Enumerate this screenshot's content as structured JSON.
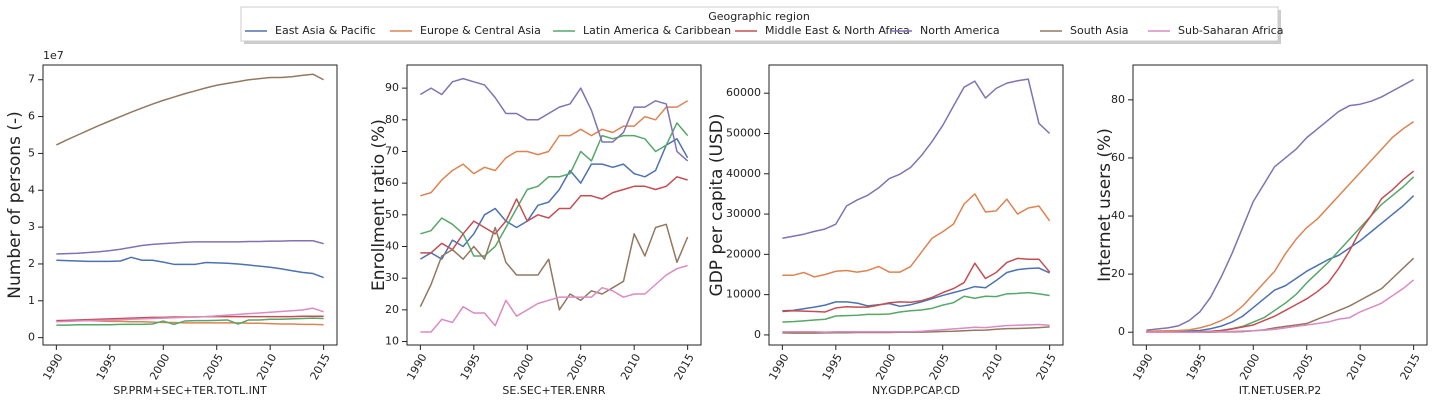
{
  "legend_title": "Geographic region",
  "chart_data": [
    {
      "type": "line",
      "ylabel": "Number of persons (-)",
      "xlabel": "SP.PRM+SEC+TER.TOTL.INT",
      "y_offset_label": "1e7",
      "x": [
        1990,
        1991,
        1992,
        1993,
        1994,
        1995,
        1996,
        1997,
        1998,
        1999,
        2000,
        2001,
        2002,
        2003,
        2004,
        2005,
        2006,
        2007,
        2008,
        2009,
        2010,
        2011,
        2012,
        2013,
        2014,
        2015
      ],
      "xlim": [
        1988.75,
        2016.25
      ],
      "xticks": [
        1990,
        1995,
        2000,
        2005,
        2010,
        2015
      ],
      "ylim": [
        -0.2,
        7.4
      ],
      "yticks": [
        0,
        1,
        2,
        3,
        4,
        5,
        6,
        7
      ],
      "series": [
        {
          "name": "East Asia & Pacific",
          "color": "#4c72b0",
          "values": [
            2.1,
            2.09,
            2.08,
            2.07,
            2.07,
            2.07,
            2.08,
            2.18,
            2.1,
            2.1,
            2.05,
            1.99,
            1.99,
            1.99,
            2.04,
            2.03,
            2.02,
            2.0,
            1.97,
            1.94,
            1.91,
            1.87,
            1.82,
            1.77,
            1.74,
            1.63
          ]
        },
        {
          "name": "Europe & Central Asia",
          "color": "#dd8452",
          "values": [
            0.44,
            0.45,
            0.46,
            0.46,
            0.45,
            0.44,
            0.44,
            0.43,
            0.43,
            0.42,
            0.41,
            0.41,
            0.4,
            0.4,
            0.4,
            0.4,
            0.4,
            0.4,
            0.39,
            0.39,
            0.38,
            0.37,
            0.37,
            0.36,
            0.36,
            0.35
          ]
        },
        {
          "name": "Latin America & Caribbean",
          "color": "#55a868",
          "values": [
            0.34,
            0.34,
            0.35,
            0.35,
            0.35,
            0.35,
            0.36,
            0.36,
            0.36,
            0.37,
            0.45,
            0.36,
            0.45,
            0.46,
            0.46,
            0.47,
            0.48,
            0.37,
            0.48,
            0.48,
            0.5,
            0.5,
            0.51,
            0.52,
            0.53,
            0.52
          ]
        },
        {
          "name": "Middle East & North Africa",
          "color": "#c44e52",
          "values": [
            0.46,
            0.47,
            0.48,
            0.49,
            0.5,
            0.51,
            0.52,
            0.53,
            0.54,
            0.55,
            0.55,
            0.56,
            0.56,
            0.56,
            0.57,
            0.57,
            0.57,
            0.57,
            0.57,
            0.57,
            0.57,
            0.57,
            0.57,
            0.58,
            0.58,
            0.58
          ]
        },
        {
          "name": "North America",
          "color": "#8172b3",
          "values": [
            2.27,
            2.28,
            2.29,
            2.31,
            2.33,
            2.36,
            2.4,
            2.45,
            2.5,
            2.53,
            2.55,
            2.57,
            2.59,
            2.6,
            2.6,
            2.6,
            2.6,
            2.6,
            2.61,
            2.61,
            2.62,
            2.62,
            2.63,
            2.63,
            2.63,
            2.55
          ]
        },
        {
          "name": "South Asia",
          "color": "#937860",
          "values": [
            5.23,
            5.37,
            5.5,
            5.63,
            5.76,
            5.88,
            6.0,
            6.12,
            6.23,
            6.34,
            6.44,
            6.53,
            6.62,
            6.7,
            6.78,
            6.85,
            6.9,
            6.95,
            7.0,
            7.03,
            7.06,
            7.06,
            7.08,
            7.12,
            7.15,
            7.0
          ]
        },
        {
          "name": "Sub-Saharan Africa",
          "color": "#da8bc3",
          "values": [
            0.43,
            0.44,
            0.45,
            0.46,
            0.47,
            0.48,
            0.49,
            0.5,
            0.51,
            0.52,
            0.53,
            0.54,
            0.55,
            0.56,
            0.57,
            0.59,
            0.61,
            0.63,
            0.65,
            0.67,
            0.69,
            0.71,
            0.73,
            0.75,
            0.8,
            0.7
          ]
        }
      ]
    },
    {
      "type": "line",
      "ylabel": "Enrollment ratio (%)",
      "xlabel": "SE.SEC+TER.ENRR",
      "x": [
        1990,
        1991,
        1992,
        1993,
        1994,
        1995,
        1996,
        1997,
        1998,
        1999,
        2000,
        2001,
        2002,
        2003,
        2004,
        2005,
        2006,
        2007,
        2008,
        2009,
        2010,
        2011,
        2012,
        2013,
        2014,
        2015
      ],
      "xlim": [
        1988.75,
        2016.25
      ],
      "xticks": [
        1990,
        1995,
        2000,
        2005,
        2010,
        2015
      ],
      "ylim": [
        8.9,
        97.3
      ],
      "yticks": [
        10,
        20,
        30,
        40,
        50,
        60,
        70,
        80,
        90
      ],
      "series": [
        {
          "name": "East Asia & Pacific",
          "color": "#4c72b0",
          "values": [
            36,
            38,
            36,
            42,
            40,
            44,
            50,
            52,
            48,
            46,
            48,
            53,
            54,
            58,
            64,
            60,
            66,
            66,
            65,
            66,
            63,
            62,
            64,
            72,
            74,
            68
          ]
        },
        {
          "name": "Europe & Central Asia",
          "color": "#dd8452",
          "values": [
            56,
            57,
            61,
            64,
            66,
            63,
            65,
            64,
            68,
            70,
            70,
            69,
            70,
            75,
            75,
            77,
            75,
            77,
            76,
            78,
            78,
            81,
            80,
            84,
            84,
            86
          ]
        },
        {
          "name": "Latin America & Caribbean",
          "color": "#55a868",
          "values": [
            44,
            45,
            49,
            47,
            44,
            37,
            37,
            40,
            46,
            52,
            58,
            59,
            62,
            62,
            63,
            70,
            67,
            75,
            74,
            75,
            75,
            74,
            70,
            72,
            79,
            75
          ]
        },
        {
          "name": "Middle East & North Africa",
          "color": "#c44e52",
          "values": [
            38,
            38,
            41,
            39,
            44,
            48,
            46,
            44,
            48,
            55,
            48,
            50,
            49,
            52,
            52,
            56,
            56,
            55,
            57,
            58,
            59,
            59,
            58,
            59,
            62,
            61
          ]
        },
        {
          "name": "North America",
          "color": "#8172b3",
          "values": [
            88,
            90,
            88,
            92,
            93,
            92,
            91,
            87,
            82,
            82,
            80,
            80,
            82,
            84,
            85,
            90,
            83,
            73,
            73,
            76,
            84,
            84,
            86,
            85,
            70,
            67
          ]
        },
        {
          "name": "South Asia",
          "color": "#937860",
          "values": [
            21,
            28,
            37,
            39,
            36,
            40,
            36,
            46,
            35,
            31,
            31,
            31,
            36,
            20,
            25,
            23,
            26,
            25,
            27,
            29,
            44,
            37,
            46,
            47,
            35,
            43
          ]
        },
        {
          "name": "Sub-Saharan Africa",
          "color": "#da8bc3",
          "values": [
            13,
            13,
            17,
            16,
            21,
            19,
            19,
            15,
            23,
            18,
            20,
            22,
            23,
            24,
            24,
            24,
            24,
            27,
            26,
            24,
            25,
            25,
            28,
            31,
            33,
            34
          ]
        }
      ]
    },
    {
      "type": "line",
      "ylabel": "GDP per capita (USD)",
      "xlabel": "NY.GDP.PCAP.CD",
      "x": [
        1990,
        1991,
        1992,
        1993,
        1994,
        1995,
        1996,
        1997,
        1998,
        1999,
        2000,
        2001,
        2002,
        2003,
        2004,
        2005,
        2006,
        2007,
        2008,
        2009,
        2010,
        2011,
        2012,
        2013,
        2014,
        2015
      ],
      "xlim": [
        1988.75,
        2016.25
      ],
      "xticks": [
        1990,
        1995,
        2000,
        2005,
        2010,
        2015
      ],
      "ylim": [
        -2500,
        67000
      ],
      "yticks": [
        0,
        10000,
        20000,
        30000,
        40000,
        50000,
        60000
      ],
      "series": [
        {
          "name": "East Asia & Pacific",
          "color": "#4c72b0",
          "values": [
            6000,
            6100,
            6500,
            6900,
            7400,
            8200,
            8200,
            7900,
            7200,
            7500,
            7800,
            7100,
            7500,
            8200,
            9000,
            9800,
            10500,
            11200,
            12000,
            11700,
            13500,
            15500,
            16200,
            16500,
            16600,
            15400
          ]
        },
        {
          "name": "Europe & Central Asia",
          "color": "#dd8452",
          "values": [
            14800,
            14800,
            15500,
            14400,
            15000,
            15800,
            16000,
            15600,
            16000,
            17000,
            15600,
            15600,
            17000,
            20500,
            24000,
            25600,
            27500,
            32500,
            35000,
            30500,
            30800,
            33700,
            30000,
            31500,
            32000,
            28300
          ]
        },
        {
          "name": "Latin America & Caribbean",
          "color": "#55a868",
          "values": [
            3200,
            3300,
            3500,
            3700,
            3900,
            4700,
            4800,
            4900,
            5100,
            5100,
            5200,
            5700,
            6000,
            6200,
            6600,
            7400,
            8000,
            9600,
            9100,
            9600,
            9500,
            10200,
            10300,
            10500,
            10200,
            9800
          ]
        },
        {
          "name": "Middle East & North Africa",
          "color": "#c44e52",
          "values": [
            5800,
            6000,
            5900,
            5800,
            5700,
            6700,
            7000,
            6900,
            6900,
            7400,
            8000,
            8200,
            8100,
            8500,
            9300,
            10500,
            11500,
            13000,
            17800,
            14000,
            15500,
            18000,
            19000,
            18800,
            18800,
            15600
          ]
        },
        {
          "name": "North America",
          "color": "#8172b3",
          "values": [
            24000,
            24500,
            25000,
            25700,
            26300,
            27500,
            32000,
            33500,
            34700,
            36500,
            38800,
            39900,
            41600,
            44500,
            48000,
            52000,
            56800,
            61500,
            63000,
            58800,
            61200,
            62500,
            63100,
            63500,
            52500,
            50000
          ]
        },
        {
          "name": "South Asia",
          "color": "#937860",
          "values": [
            500,
            450,
            450,
            450,
            500,
            550,
            550,
            600,
            600,
            600,
            600,
            650,
            650,
            700,
            750,
            850,
            900,
            1050,
            1150,
            1200,
            1400,
            1550,
            1600,
            1700,
            1800,
            2000
          ]
        },
        {
          "name": "Sub-Saharan Africa",
          "color": "#da8bc3",
          "values": [
            800,
            800,
            800,
            800,
            700,
            800,
            800,
            800,
            800,
            800,
            800,
            800,
            800,
            900,
            1100,
            1300,
            1500,
            1700,
            1900,
            1800,
            2100,
            2300,
            2400,
            2500,
            2600,
            2400
          ]
        }
      ]
    },
    {
      "type": "line",
      "ylabel": "Internet users (%)",
      "xlabel": "IT.NET.USER.P2",
      "x": [
        1990,
        1991,
        1992,
        1993,
        1994,
        1995,
        1996,
        1997,
        1998,
        1999,
        2000,
        2001,
        2002,
        2003,
        2004,
        2005,
        2006,
        2007,
        2008,
        2009,
        2010,
        2011,
        2012,
        2013,
        2014,
        2015
      ],
      "xlim": [
        1988.75,
        2016.25
      ],
      "xticks": [
        1990,
        1995,
        2000,
        2005,
        2010,
        2015
      ],
      "ylim": [
        -4.4,
        92
      ],
      "yticks": [
        0,
        20,
        40,
        60,
        80
      ],
      "series": [
        {
          "name": "East Asia & Pacific",
          "color": "#4c72b0",
          "values": [
            0.2,
            0.2,
            0.3,
            0.3,
            0.4,
            0.6,
            1.2,
            2.1,
            3.5,
            5.5,
            8.5,
            11.5,
            14.5,
            16,
            18.5,
            21,
            23,
            25,
            26.5,
            29,
            31.5,
            34.5,
            37.5,
            40.5,
            43.5,
            47
          ]
        },
        {
          "name": "Europe & Central Asia",
          "color": "#dd8452",
          "values": [
            0.3,
            0.4,
            0.5,
            0.6,
            0.8,
            1.5,
            2.5,
            4,
            6,
            9,
            13,
            17,
            21,
            27,
            32,
            36,
            39,
            43,
            47,
            51,
            55,
            59,
            63,
            67,
            70,
            72.5
          ]
        },
        {
          "name": "Latin America & Caribbean",
          "color": "#55a868",
          "values": [
            0,
            0,
            0,
            0,
            0,
            0.1,
            0.3,
            0.6,
            1.2,
            2,
            3.5,
            5,
            7.5,
            10,
            13,
            17,
            20.5,
            24,
            28,
            32,
            36,
            40,
            44,
            47,
            50,
            53.5
          ]
        },
        {
          "name": "Middle East & North Africa",
          "color": "#c44e52",
          "values": [
            0,
            0,
            0,
            0,
            0,
            0.1,
            0.3,
            0.6,
            1.1,
            1.8,
            2.5,
            4,
            5.5,
            7.5,
            9.5,
            11.5,
            14,
            17,
            22,
            28,
            35,
            40,
            46,
            49,
            52.5,
            55.5
          ]
        },
        {
          "name": "North America",
          "color": "#8172b3",
          "values": [
            0.7,
            1.1,
            1.5,
            2.2,
            4,
            7,
            12,
            19,
            27,
            36,
            45,
            51,
            57,
            60,
            63,
            67,
            70,
            73,
            76,
            78,
            78.5,
            79.5,
            81,
            83,
            85,
            87
          ]
        },
        {
          "name": "South Asia",
          "color": "#937860",
          "values": [
            0,
            0,
            0,
            0,
            0,
            0,
            0,
            0.1,
            0.1,
            0.2,
            0.5,
            0.8,
            1.5,
            2,
            2.5,
            3,
            4.5,
            6,
            7.5,
            9,
            11,
            13,
            15,
            18.5,
            22,
            25.5
          ]
        },
        {
          "name": "Sub-Saharan Africa",
          "color": "#da8bc3",
          "values": [
            0,
            0,
            0,
            0,
            0,
            0,
            0.1,
            0.2,
            0.3,
            0.4,
            0.5,
            0.7,
            1,
            1.5,
            2,
            2.5,
            3,
            3.5,
            4.5,
            5,
            7,
            8.5,
            10,
            12.5,
            15,
            18
          ]
        }
      ]
    }
  ]
}
